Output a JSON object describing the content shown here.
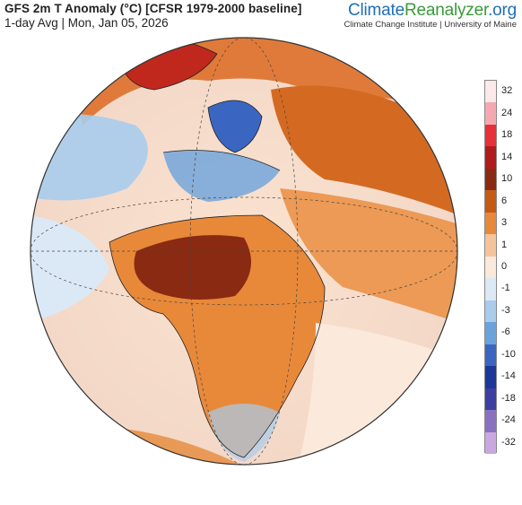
{
  "header": {
    "title": "GFS 2m T Anomaly (°C) [CFSR 1979-2000 baseline]",
    "subtitle": "1-day Avg | Mon, Jan 05, 2026"
  },
  "brand": {
    "name_part1": "Climate",
    "name_part2": "Reanalyzer",
    "name_part3": ".org",
    "subtitle": "Climate Change Institute | University of Maine"
  },
  "legend": {
    "ticks": [
      "32",
      "24",
      "18",
      "14",
      "10",
      "6",
      "3",
      "1",
      "0",
      "-1",
      "-3",
      "-6",
      "-10",
      "-14",
      "-18",
      "-24",
      "-32"
    ],
    "colors": [
      "#fde8ea",
      "#f6a8b0",
      "#e8303a",
      "#b01c1c",
      "#8a2a12",
      "#c45a14",
      "#e6893a",
      "#f6c49a",
      "#fbe9db",
      "#dbe9f6",
      "#a9ccec",
      "#6aa3dc",
      "#3a66c2",
      "#1d3799",
      "#3d3fa0",
      "#8a70c0",
      "#c9a8e0"
    ]
  }
}
